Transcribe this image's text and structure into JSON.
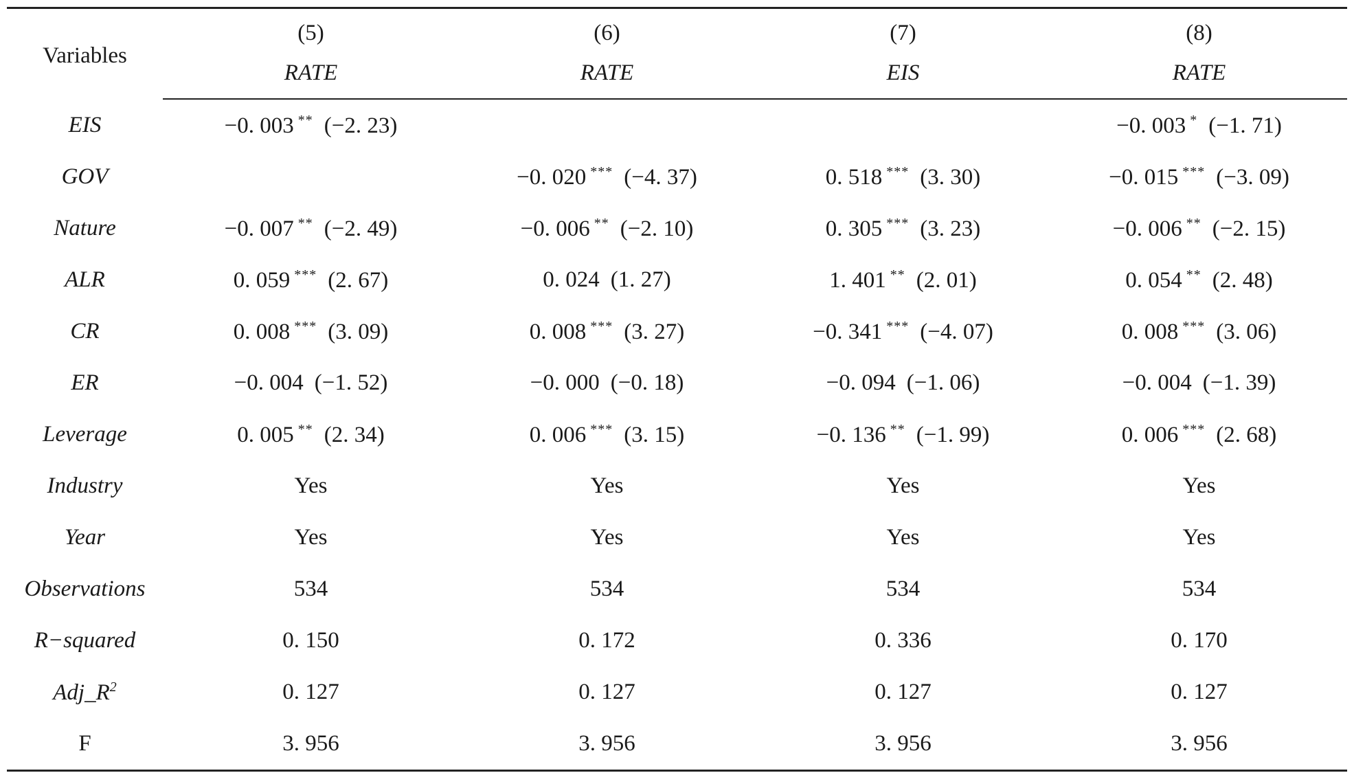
{
  "header": {
    "variables_label": "Variables",
    "columns": [
      {
        "number": "(5)",
        "dep": "RATE"
      },
      {
        "number": "(6)",
        "dep": "RATE"
      },
      {
        "number": "(7)",
        "dep": "EIS"
      },
      {
        "number": "(8)",
        "dep": "RATE"
      }
    ]
  },
  "rows": [
    {
      "var": "EIS",
      "cells": [
        {
          "coef": "−0. 003",
          "stars": "**",
          "t": "(−2. 23)"
        },
        {
          "coef": "",
          "stars": "",
          "t": ""
        },
        {
          "coef": "",
          "stars": "",
          "t": ""
        },
        {
          "coef": "−0. 003",
          "stars": "*",
          "t": "(−1. 71)"
        }
      ]
    },
    {
      "var": "GOV",
      "cells": [
        {
          "coef": "",
          "stars": "",
          "t": ""
        },
        {
          "coef": "−0. 020",
          "stars": "***",
          "t": "(−4. 37)"
        },
        {
          "coef": "0. 518",
          "stars": "***",
          "t": "(3. 30)"
        },
        {
          "coef": "−0. 015",
          "stars": "***",
          "t": "(−3. 09)"
        }
      ]
    },
    {
      "var": "Nature",
      "cells": [
        {
          "coef": "−0. 007",
          "stars": "**",
          "t": "(−2. 49)"
        },
        {
          "coef": "−0. 006",
          "stars": "**",
          "t": "(−2. 10)"
        },
        {
          "coef": "0. 305",
          "stars": "***",
          "t": "(3. 23)"
        },
        {
          "coef": "−0. 006",
          "stars": "**",
          "t": "(−2. 15)"
        }
      ]
    },
    {
      "var": "ALR",
      "cells": [
        {
          "coef": "0. 059",
          "stars": "***",
          "t": "(2. 67)"
        },
        {
          "coef": "0. 024",
          "stars": "",
          "t": "(1. 27)"
        },
        {
          "coef": "1. 401",
          "stars": "**",
          "t": "(2. 01)"
        },
        {
          "coef": "0. 054",
          "stars": "**",
          "t": "(2. 48)"
        }
      ]
    },
    {
      "var": "CR",
      "cells": [
        {
          "coef": "0. 008",
          "stars": "***",
          "t": "(3. 09)"
        },
        {
          "coef": "0. 008",
          "stars": "***",
          "t": "(3. 27)"
        },
        {
          "coef": "−0. 341",
          "stars": "***",
          "t": "(−4. 07)"
        },
        {
          "coef": "0. 008",
          "stars": "***",
          "t": "(3. 06)"
        }
      ]
    },
    {
      "var": "ER",
      "cells": [
        {
          "coef": "−0. 004",
          "stars": "",
          "t": "(−1. 52)"
        },
        {
          "coef": "−0. 000",
          "stars": "",
          "t": "(−0. 18)"
        },
        {
          "coef": "−0. 094",
          "stars": "",
          "t": "(−1. 06)"
        },
        {
          "coef": "−0. 004",
          "stars": "",
          "t": "(−1. 39)"
        }
      ]
    },
    {
      "var": "Leverage",
      "cells": [
        {
          "coef": "0. 005",
          "stars": "**",
          "t": "(2. 34)"
        },
        {
          "coef": "0. 006",
          "stars": "***",
          "t": "(3. 15)"
        },
        {
          "coef": "−0. 136",
          "stars": "**",
          "t": "(−1. 99)"
        },
        {
          "coef": "0. 006",
          "stars": "***",
          "t": "(2. 68)"
        }
      ]
    },
    {
      "var": "Industry",
      "cells": [
        {
          "coef": "Yes",
          "stars": "",
          "t": ""
        },
        {
          "coef": "Yes",
          "stars": "",
          "t": ""
        },
        {
          "coef": "Yes",
          "stars": "",
          "t": ""
        },
        {
          "coef": "Yes",
          "stars": "",
          "t": ""
        }
      ]
    },
    {
      "var": "Year",
      "cells": [
        {
          "coef": "Yes",
          "stars": "",
          "t": ""
        },
        {
          "coef": "Yes",
          "stars": "",
          "t": ""
        },
        {
          "coef": "Yes",
          "stars": "",
          "t": ""
        },
        {
          "coef": "Yes",
          "stars": "",
          "t": ""
        }
      ]
    },
    {
      "var": "Observations",
      "cells": [
        {
          "coef": "534",
          "stars": "",
          "t": ""
        },
        {
          "coef": "534",
          "stars": "",
          "t": ""
        },
        {
          "coef": "534",
          "stars": "",
          "t": ""
        },
        {
          "coef": "534",
          "stars": "",
          "t": ""
        }
      ]
    },
    {
      "var": "R−squared",
      "cells": [
        {
          "coef": "0. 150",
          "stars": "",
          "t": ""
        },
        {
          "coef": "0. 172",
          "stars": "",
          "t": ""
        },
        {
          "coef": "0. 336",
          "stars": "",
          "t": ""
        },
        {
          "coef": "0. 170",
          "stars": "",
          "t": ""
        }
      ]
    },
    {
      "var": "Adj_R",
      "var_sup": "2",
      "cells": [
        {
          "coef": "0. 127",
          "stars": "",
          "t": ""
        },
        {
          "coef": "0. 127",
          "stars": "",
          "t": ""
        },
        {
          "coef": "0. 127",
          "stars": "",
          "t": ""
        },
        {
          "coef": "0. 127",
          "stars": "",
          "t": ""
        }
      ]
    },
    {
      "var": "F",
      "var_plain": true,
      "cells": [
        {
          "coef": "3. 956",
          "stars": "",
          "t": ""
        },
        {
          "coef": "3. 956",
          "stars": "",
          "t": ""
        },
        {
          "coef": "3. 956",
          "stars": "",
          "t": ""
        },
        {
          "coef": "3. 956",
          "stars": "",
          "t": ""
        }
      ]
    }
  ]
}
